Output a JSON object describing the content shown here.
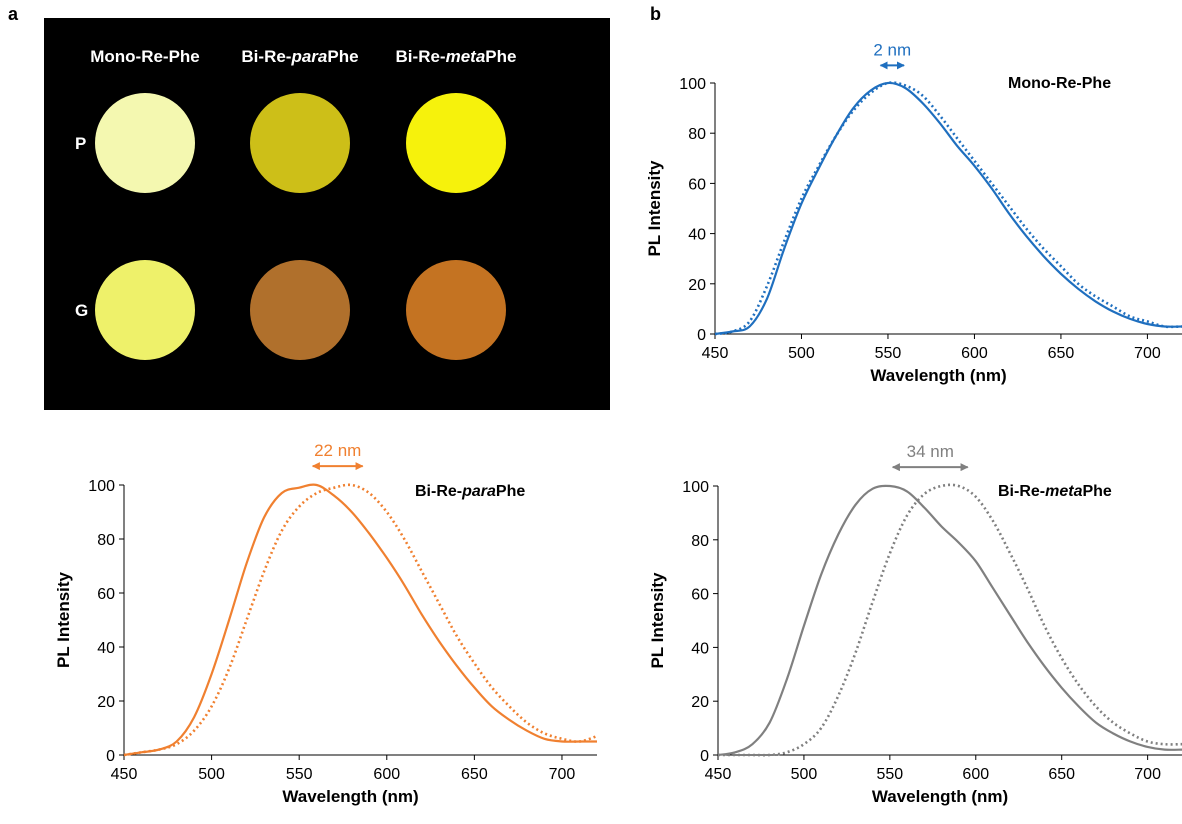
{
  "panel_labels": {
    "a": "a",
    "b": "b"
  },
  "photo": {
    "column_labels": [
      [
        {
          "t": "Mono-Re-Phe",
          "i": false
        }
      ],
      [
        {
          "t": "Bi-Re-",
          "i": false
        },
        {
          "t": "para",
          "i": true
        },
        {
          "t": "Phe",
          "i": false
        }
      ],
      [
        {
          "t": "Bi-Re-",
          "i": false
        },
        {
          "t": "meta",
          "i": true
        },
        {
          "t": "Phe",
          "i": false
        }
      ]
    ],
    "row_labels": [
      "P",
      "G"
    ],
    "colors": {
      "background": "#000000",
      "P": [
        "#f4f8b0",
        "#cdbf18",
        "#f6f20c"
      ],
      "G": [
        "#eef16a",
        "#b0702c",
        "#c47322"
      ]
    }
  },
  "chart_data": [
    {
      "type": "line",
      "title": [
        {
          "t": "Mono-Re-Phe",
          "i": false
        }
      ],
      "xlabel": "Wavelength (nm)",
      "ylabel": "PL Intensity",
      "xlim": [
        450,
        720
      ],
      "ylim": [
        0,
        100
      ],
      "xticks": [
        450,
        500,
        550,
        600,
        650,
        700
      ],
      "yticks": [
        0,
        20,
        40,
        60,
        80,
        100
      ],
      "grid": false,
      "color": "#1f6fbf",
      "annotation": {
        "label": "2 nm",
        "from": 548,
        "to": 557,
        "y": 107
      },
      "series": [
        {
          "style": "solid",
          "x": [
            450,
            460,
            470,
            480,
            490,
            500,
            510,
            520,
            530,
            540,
            550,
            560,
            570,
            580,
            590,
            600,
            610,
            620,
            630,
            640,
            650,
            660,
            670,
            680,
            690,
            700,
            710,
            720
          ],
          "y": [
            0,
            1,
            3,
            14,
            34,
            52,
            66,
            79,
            90,
            97,
            100,
            98,
            92,
            84,
            75,
            67,
            58,
            48,
            39,
            31,
            24,
            18,
            13,
            9,
            6,
            4,
            3,
            3
          ]
        },
        {
          "style": "dotted",
          "x": [
            450,
            460,
            470,
            480,
            490,
            500,
            510,
            520,
            530,
            540,
            550,
            560,
            570,
            580,
            590,
            600,
            610,
            620,
            630,
            640,
            650,
            660,
            670,
            680,
            690,
            700,
            710,
            720
          ],
          "y": [
            0,
            1,
            5,
            19,
            37,
            54,
            67,
            79,
            89,
            96,
            100,
            99,
            95,
            87,
            78,
            69,
            60,
            51,
            42,
            34,
            27,
            20,
            15,
            11,
            7,
            5,
            3,
            3
          ]
        }
      ]
    },
    {
      "type": "line",
      "title": [
        {
          "t": "Bi-Re-",
          "i": false
        },
        {
          "t": "para",
          "i": true
        },
        {
          "t": "Phe",
          "i": false
        }
      ],
      "xlabel": "Wavelength (nm)",
      "ylabel": "PL Intensity",
      "xlim": [
        450,
        720
      ],
      "ylim": [
        0,
        100
      ],
      "xticks": [
        450,
        500,
        550,
        600,
        650,
        700
      ],
      "yticks": [
        0,
        20,
        40,
        60,
        80,
        100
      ],
      "grid": false,
      "color": "#f08030",
      "annotation": {
        "label": "22 nm",
        "from": 560,
        "to": 584,
        "y": 107
      },
      "series": [
        {
          "style": "solid",
          "x": [
            450,
            460,
            470,
            480,
            490,
            500,
            510,
            520,
            530,
            540,
            550,
            560,
            570,
            580,
            590,
            600,
            610,
            620,
            630,
            640,
            650,
            660,
            670,
            680,
            690,
            700,
            710,
            720
          ],
          "y": [
            0,
            1,
            2,
            5,
            14,
            30,
            50,
            71,
            88,
            97,
            99,
            100,
            96,
            90,
            82,
            73,
            63,
            52,
            42,
            33,
            25,
            18,
            13,
            9,
            6,
            5,
            5,
            5
          ]
        },
        {
          "style": "dotted",
          "x": [
            450,
            460,
            470,
            480,
            490,
            500,
            510,
            520,
            530,
            540,
            550,
            560,
            570,
            580,
            590,
            600,
            610,
            620,
            630,
            640,
            650,
            660,
            670,
            680,
            690,
            700,
            710,
            720
          ],
          "y": [
            0,
            1,
            2,
            4,
            9,
            18,
            32,
            50,
            68,
            83,
            92,
            97,
            99,
            100,
            97,
            90,
            80,
            68,
            56,
            44,
            34,
            25,
            18,
            12,
            8,
            6,
            5,
            7
          ]
        }
      ]
    },
    {
      "type": "line",
      "title": [
        {
          "t": "Bi-Re-",
          "i": false
        },
        {
          "t": "meta",
          "i": true
        },
        {
          "t": "Phe",
          "i": false
        }
      ],
      "xlabel": "Wavelength (nm)",
      "ylabel": "PL Intensity",
      "xlim": [
        450,
        720
      ],
      "ylim": [
        0,
        100
      ],
      "xticks": [
        450,
        500,
        550,
        600,
        650,
        700
      ],
      "yticks": [
        0,
        20,
        40,
        60,
        80,
        100
      ],
      "grid": false,
      "color": "#808080",
      "annotation": {
        "label": "34 nm",
        "from": 554,
        "to": 593,
        "y": 107
      },
      "series": [
        {
          "style": "solid",
          "x": [
            450,
            460,
            470,
            480,
            490,
            500,
            510,
            520,
            530,
            540,
            550,
            560,
            570,
            580,
            590,
            600,
            610,
            620,
            630,
            640,
            650,
            660,
            670,
            680,
            690,
            700,
            710,
            720
          ],
          "y": [
            0,
            1,
            4,
            12,
            28,
            48,
            67,
            82,
            93,
            99,
            100,
            98,
            92,
            85,
            79,
            72,
            62,
            52,
            42,
            33,
            25,
            18,
            12,
            8,
            5,
            3,
            2,
            2
          ]
        },
        {
          "style": "dotted",
          "x": [
            450,
            460,
            470,
            480,
            490,
            500,
            510,
            520,
            530,
            540,
            550,
            560,
            570,
            580,
            590,
            600,
            610,
            620,
            630,
            640,
            650,
            660,
            670,
            680,
            690,
            700,
            710,
            720
          ],
          "y": [
            0,
            0,
            0,
            0,
            1,
            4,
            10,
            22,
            38,
            57,
            75,
            89,
            97,
            100,
            100,
            96,
            87,
            75,
            62,
            48,
            36,
            26,
            18,
            12,
            8,
            5,
            4,
            4
          ]
        }
      ]
    }
  ]
}
